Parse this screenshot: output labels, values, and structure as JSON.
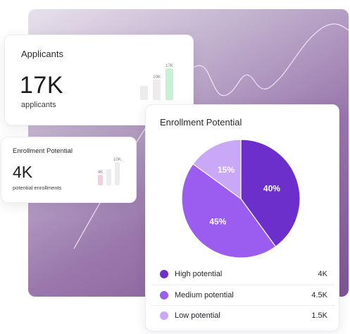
{
  "colors": {
    "high": "#6d2fcc",
    "medium": "#9b5cf0",
    "low": "#c8a8f7",
    "mini_green": "#c8f0d4",
    "mini_grey": "#ececee",
    "mini_pink": "#f3cde3"
  },
  "applicants_card": {
    "title": "Applicants",
    "value": "17K",
    "subtitle": "applicants",
    "mini_bars": [
      {
        "label": "",
        "value": 0.45,
        "color_key": "mini_grey"
      },
      {
        "label": "10K",
        "value": 0.65,
        "color_key": "mini_grey"
      },
      {
        "label": "17K",
        "value": 1.0,
        "color_key": "mini_green"
      }
    ]
  },
  "enrollment_small_card": {
    "title": "Enrollment Potential",
    "value": "4K",
    "subtitle": "potential enrollments",
    "mini_bars": [
      {
        "label": "4K",
        "value": 0.45,
        "color_key": "mini_pink"
      },
      {
        "label": "",
        "value": 0.7,
        "color_key": "mini_grey"
      },
      {
        "label": "10K",
        "value": 1.0,
        "color_key": "mini_grey"
      }
    ]
  },
  "enrollment_main_card": {
    "title": "Enrollment Potential",
    "legend": [
      {
        "label": "High potential",
        "value": "4K",
        "color_key": "high"
      },
      {
        "label": "Medium potential",
        "value": "4.5K",
        "color_key": "medium"
      },
      {
        "label": "Low potential",
        "value": "1.5K",
        "color_key": "low"
      }
    ]
  },
  "chart_data": {
    "type": "pie",
    "title": "Enrollment Potential",
    "categories": [
      "High potential",
      "Medium potential",
      "Low potential"
    ],
    "values": [
      40,
      45,
      15
    ],
    "labels": [
      "40%",
      "45%",
      "15%"
    ],
    "colors": [
      "#6d2fcc",
      "#9b5cf0",
      "#c8a8f7"
    ]
  }
}
